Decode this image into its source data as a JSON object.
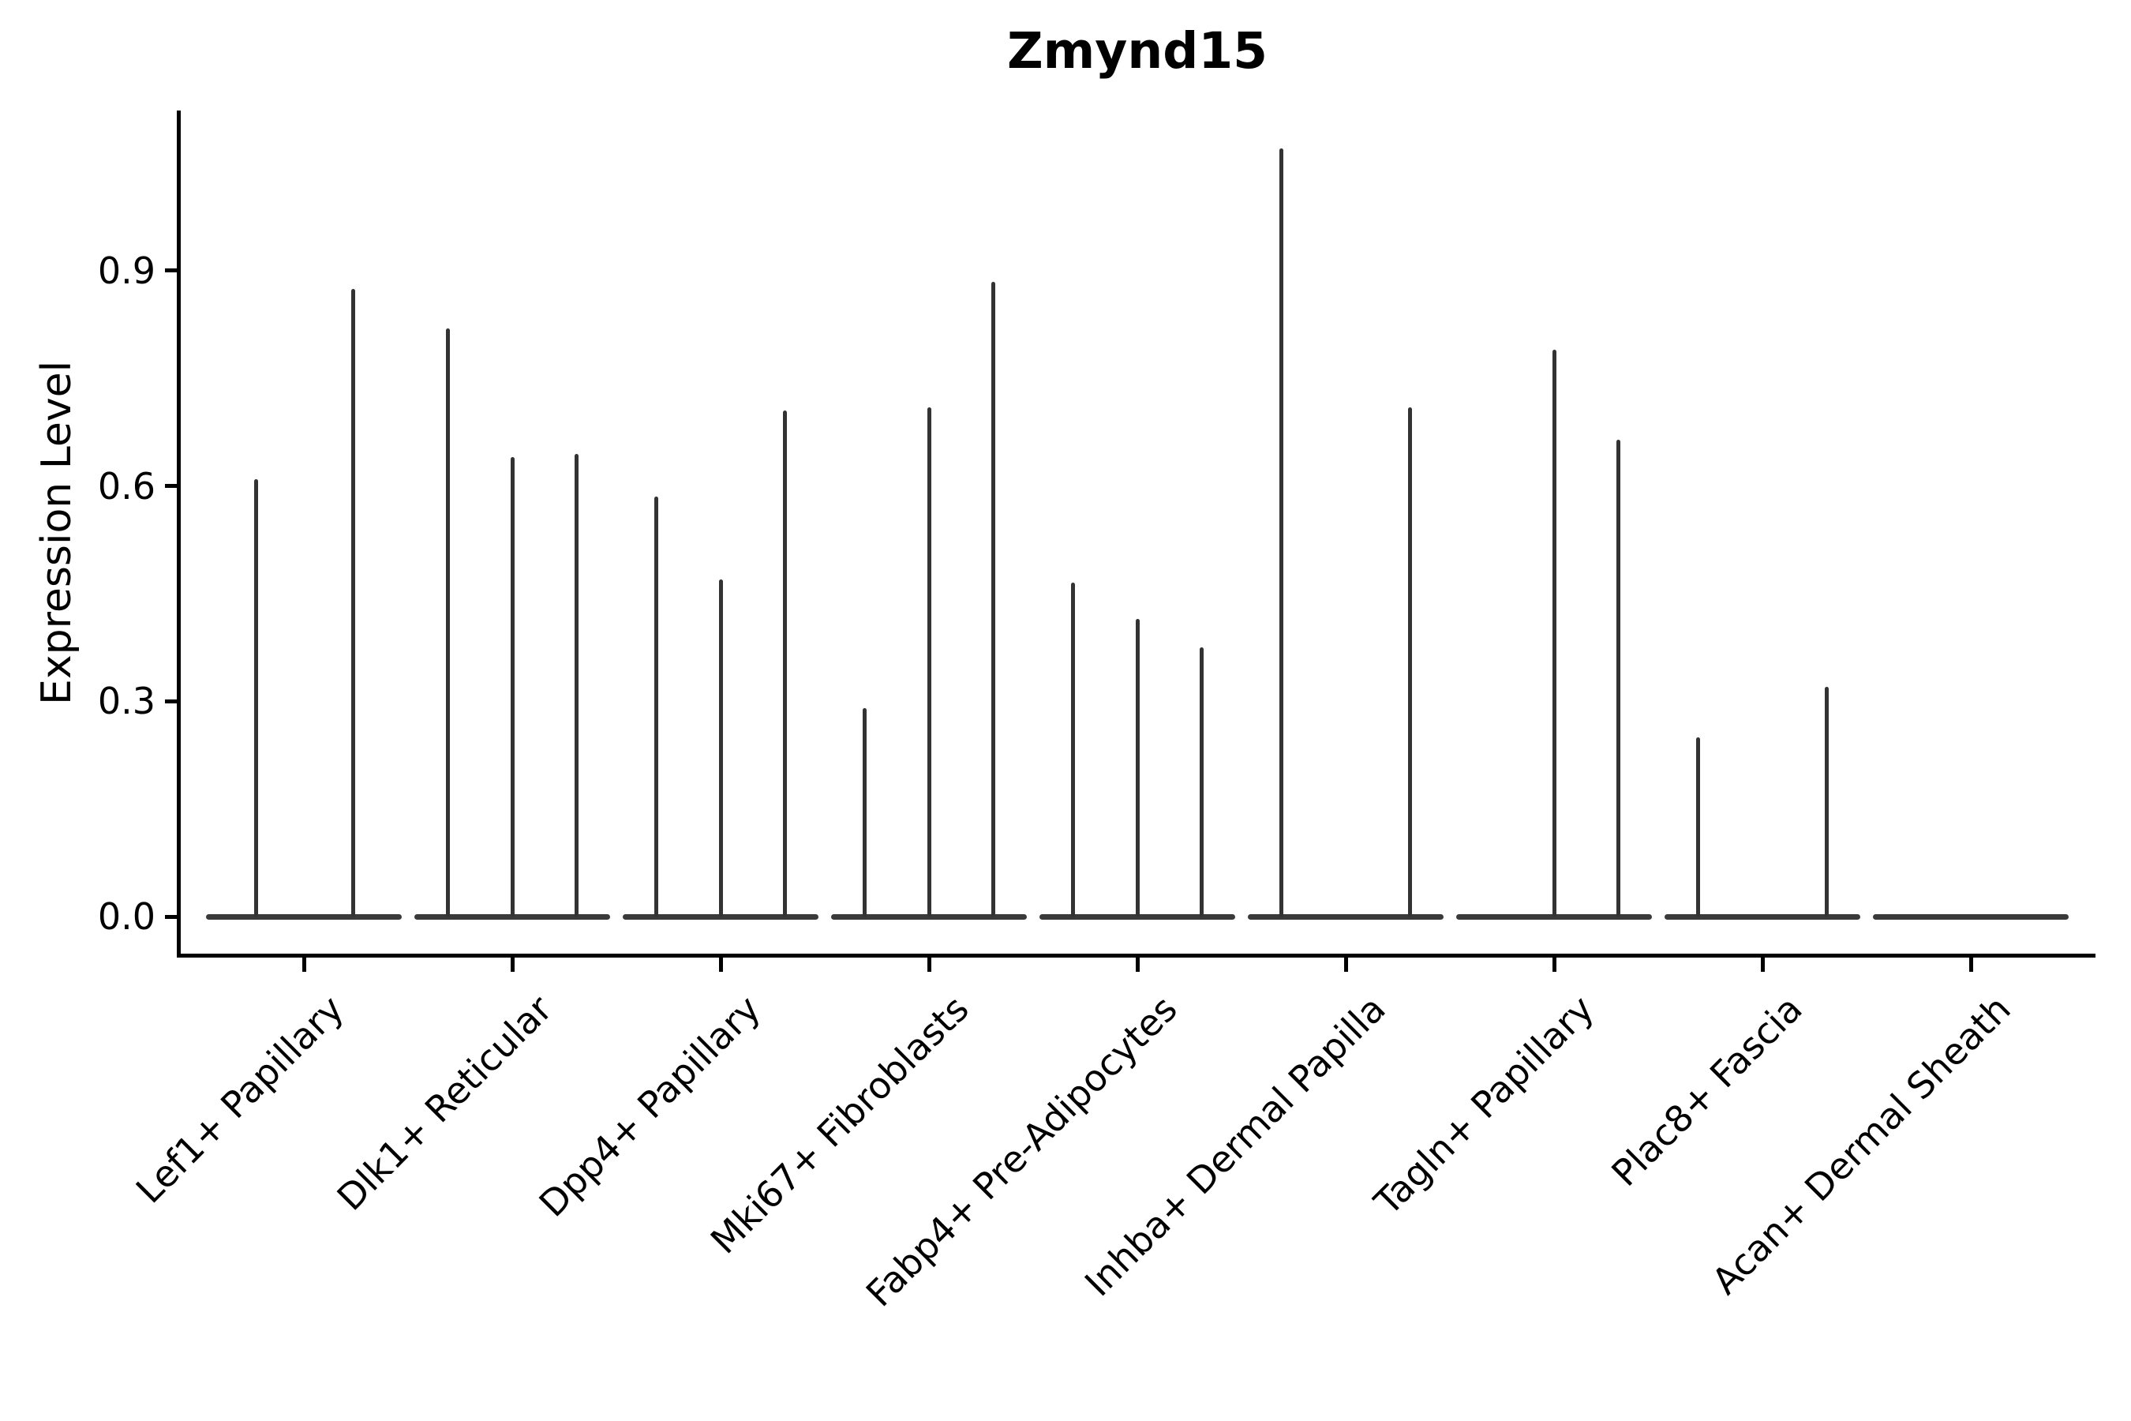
{
  "figure": {
    "title": "Zmynd15",
    "y_axis_label": "Expression Level"
  },
  "colors": {
    "background": "#ffffff",
    "axis": "#000000",
    "text": "#000000",
    "violin": "#333333"
  },
  "chart_data": {
    "type": "violin",
    "title": "Zmynd15",
    "xlabel": "",
    "ylabel": "Expression Level",
    "ylim": [
      -0.054,
      1.127
    ],
    "yticks": [
      0.0,
      0.3,
      0.6,
      0.9
    ],
    "ytick_labels": [
      "0.0",
      "0.3",
      "0.6",
      "0.9"
    ],
    "x_tick_rotation": 45,
    "grid": false,
    "legend": "none",
    "categories": [
      "Lef1+ Papillary",
      "Dlk1+ Reticular",
      "Dpp4+ Papillary",
      "Mki67+ Fibroblasts",
      "Fabp4+ Pre-Adipocytes",
      "Inhba+ Dermal Papilla",
      "Tagln+ Papillary",
      "Plac8+ Fascia",
      "Acan+ Dermal Sheath"
    ],
    "baseline_value": 0.0,
    "baseline_halfwidth": 0.47,
    "violins": [
      {
        "category": "Lef1+ Papillary",
        "spikes": [
          {
            "offset": -0.23,
            "max_expression": 0.61
          },
          {
            "offset": 0.235,
            "max_expression": 0.875
          }
        ]
      },
      {
        "category": "Dlk1+ Reticular",
        "spikes": [
          {
            "offset": -0.31,
            "max_expression": 0.82
          },
          {
            "offset": 0.0,
            "max_expression": 0.64
          },
          {
            "offset": 0.31,
            "max_expression": 0.645
          }
        ]
      },
      {
        "category": "Dpp4+ Papillary",
        "spikes": [
          {
            "offset": -0.31,
            "max_expression": 0.585
          },
          {
            "offset": 0.0,
            "max_expression": 0.47
          },
          {
            "offset": 0.31,
            "max_expression": 0.705
          }
        ]
      },
      {
        "category": "Mki67+ Fibroblasts",
        "spikes": [
          {
            "offset": -0.31,
            "max_expression": 0.29
          },
          {
            "offset": 0.0,
            "max_expression": 0.71
          },
          {
            "offset": 0.31,
            "max_expression": 0.885
          }
        ]
      },
      {
        "category": "Fabp4+ Pre-Adipocytes",
        "spikes": [
          {
            "offset": -0.31,
            "max_expression": 0.465
          },
          {
            "offset": 0.0,
            "max_expression": 0.415
          },
          {
            "offset": 0.31,
            "max_expression": 0.375
          }
        ]
      },
      {
        "category": "Inhba+ Dermal Papilla",
        "spikes": [
          {
            "offset": -0.31,
            "max_expression": 1.07
          },
          {
            "offset": 0.31,
            "max_expression": 0.71
          }
        ]
      },
      {
        "category": "Tagln+ Papillary",
        "spikes": [
          {
            "offset": 0.0,
            "max_expression": 0.79
          },
          {
            "offset": 0.31,
            "max_expression": 0.665
          }
        ]
      },
      {
        "category": "Plac8+ Fascia",
        "spikes": [
          {
            "offset": -0.31,
            "max_expression": 0.25
          },
          {
            "offset": 0.31,
            "max_expression": 0.32
          }
        ]
      },
      {
        "category": "Acan+ Dermal Sheath",
        "spikes": []
      }
    ]
  }
}
